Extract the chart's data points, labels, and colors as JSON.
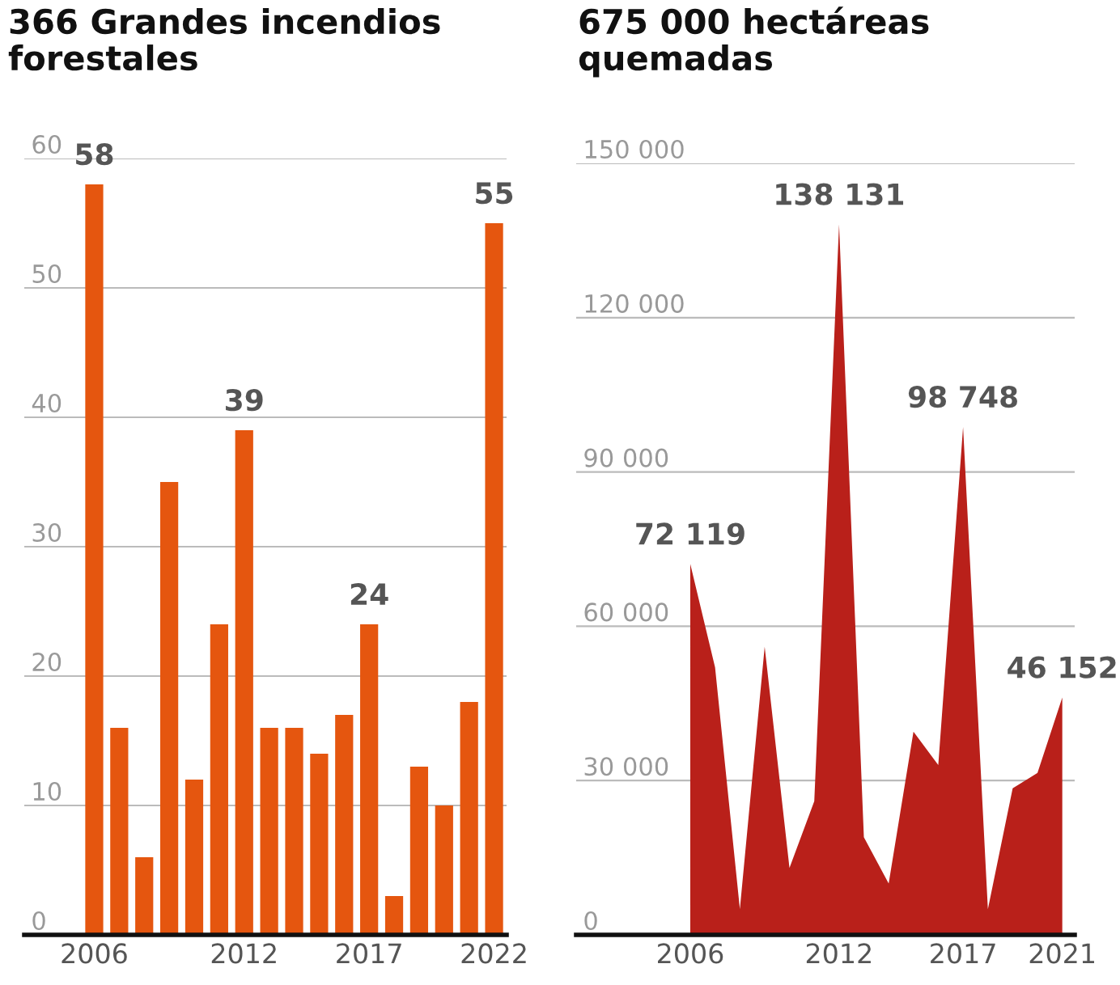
{
  "chart_data": [
    {
      "type": "bar",
      "title": "366 Grandes incendios\nforestales",
      "categories": [
        "2006",
        null,
        null,
        null,
        null,
        null,
        "2012",
        null,
        null,
        null,
        null,
        "2017",
        null,
        null,
        null,
        null,
        "2022"
      ],
      "series": [
        {
          "color": "#e5560f",
          "values": [
            58,
            16,
            6,
            35,
            12,
            24,
            39,
            16,
            16,
            14,
            17,
            24,
            3,
            13,
            10,
            18,
            55
          ],
          "value_labels": [
            "58",
            null,
            null,
            null,
            null,
            null,
            "39",
            null,
            null,
            null,
            null,
            "24",
            null,
            null,
            null,
            null,
            "55"
          ]
        }
      ],
      "ylim": [
        0,
        60
      ],
      "yticks": [
        0,
        10,
        20,
        30,
        40,
        50,
        60
      ],
      "grid": "y"
    },
    {
      "type": "area",
      "title": "675 000 hectáreas\nquemadas",
      "categories": [
        "2006",
        null,
        null,
        null,
        null,
        null,
        "2012",
        null,
        null,
        null,
        null,
        "2017",
        null,
        null,
        null,
        "2021"
      ],
      "series": [
        {
          "color": "#b9201a",
          "values": [
            72119,
            52000,
            5000,
            56000,
            13000,
            26000,
            138131,
            19000,
            10000,
            39500,
            33000,
            98748,
            5000,
            28500,
            31500,
            46152
          ],
          "value_labels": [
            "72 119",
            null,
            null,
            null,
            null,
            null,
            "138 131",
            null,
            null,
            null,
            null,
            "98 748",
            null,
            null,
            null,
            "46 152"
          ]
        }
      ],
      "ylim": [
        0,
        150000
      ],
      "yticks": [
        {
          "value": 0,
          "label": "0"
        },
        {
          "value": 30000,
          "label": "30 000"
        },
        {
          "value": 60000,
          "label": "60 000"
        },
        {
          "value": 90000,
          "label": "90 000"
        },
        {
          "value": 120000,
          "label": "120 000"
        },
        {
          "value": 150000,
          "label": "150 000"
        }
      ],
      "grid": "y"
    }
  ]
}
